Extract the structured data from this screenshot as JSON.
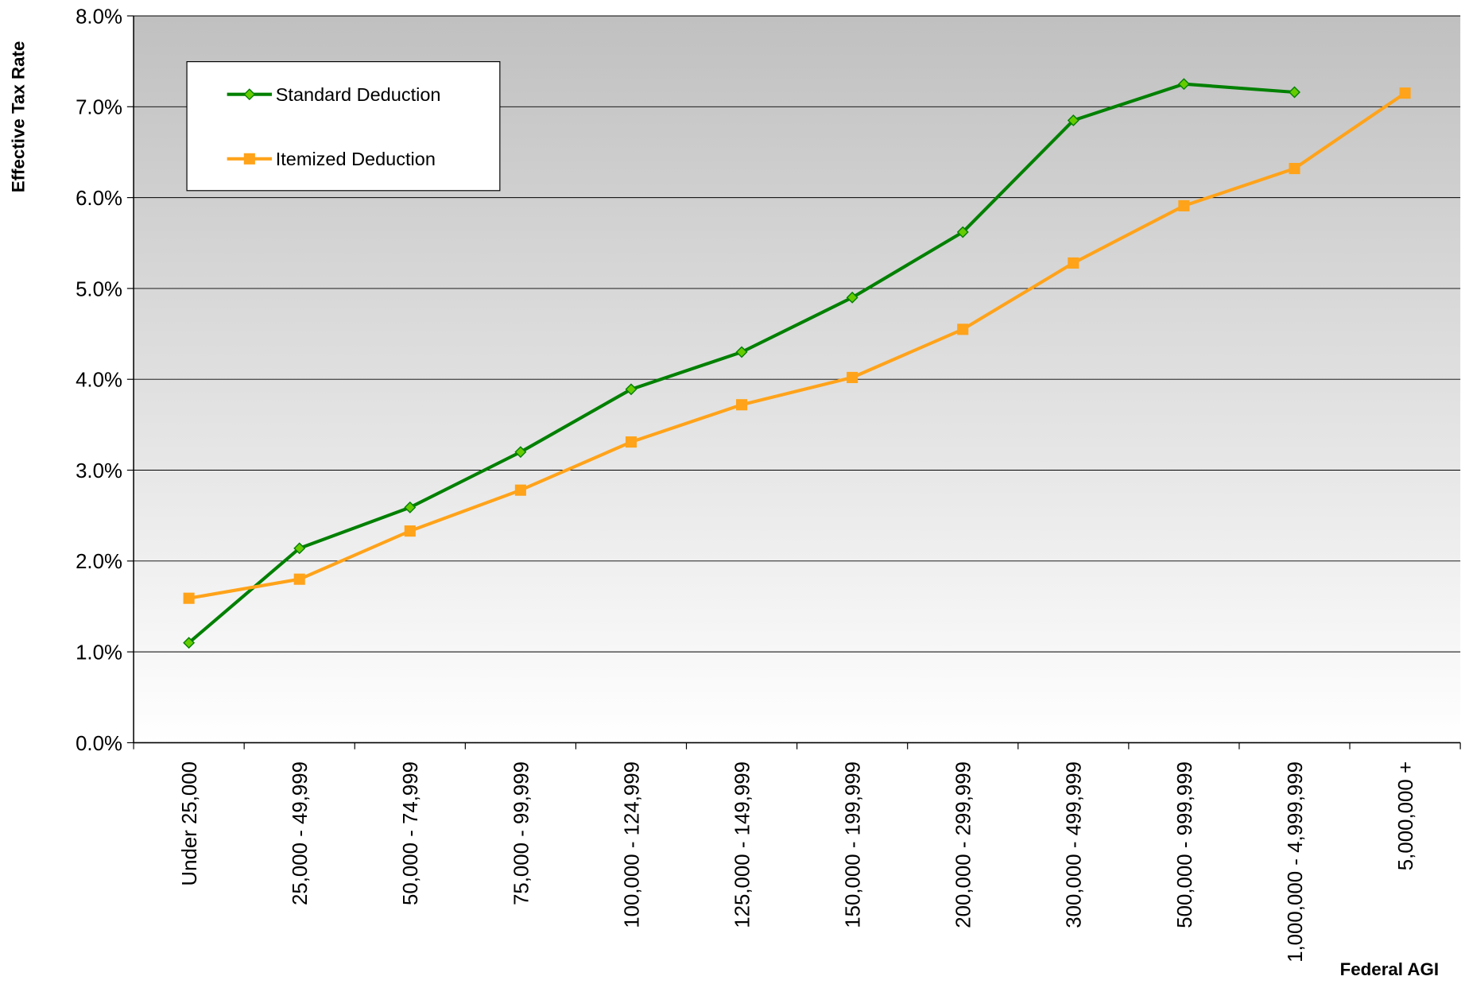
{
  "chart_data": {
    "type": "line",
    "y_label": "Effective Tax Rate",
    "x_label": "Federal AGI",
    "categories": [
      "Under 25,000",
      "25,000 -  49,999",
      "50,000 - 74,999",
      "75,000 - 99,999",
      "100,000 - 124,999",
      "125,000 - 149,999",
      "150,000 - 199,999",
      "200,000 - 299,999",
      "300,000 - 499,999",
      "500,000 - 999,999",
      "1,000,000 - 4,999,999",
      "5,000,000 +"
    ],
    "series": [
      {
        "name": "Standard Deduction",
        "color": "#008000",
        "marker": "diamond",
        "marker_color": "#66cc00",
        "values": [
          1.1,
          2.14,
          2.59,
          3.2,
          3.89,
          4.3,
          4.9,
          5.62,
          6.85,
          7.25,
          7.16,
          null
        ]
      },
      {
        "name": "Itemized Deduction",
        "color": "#ffa31a",
        "marker": "square",
        "marker_color": "#ffa31a",
        "values": [
          1.59,
          1.8,
          2.33,
          2.78,
          3.31,
          3.72,
          4.02,
          4.55,
          5.28,
          5.91,
          6.32,
          7.15
        ]
      }
    ],
    "ylim": [
      0,
      8
    ],
    "yticks": [
      {
        "value": 0,
        "label": "0.0%"
      },
      {
        "value": 1,
        "label": "1.0%"
      },
      {
        "value": 2,
        "label": "2.0%"
      },
      {
        "value": 3,
        "label": "3.0%"
      },
      {
        "value": 4,
        "label": "4.0%"
      },
      {
        "value": 5,
        "label": "5.0%"
      },
      {
        "value": 6,
        "label": "6.0%"
      },
      {
        "value": 7,
        "label": "7.0%"
      },
      {
        "value": 8,
        "label": "8.0%"
      }
    ],
    "grid": true,
    "legend": "upper left"
  }
}
